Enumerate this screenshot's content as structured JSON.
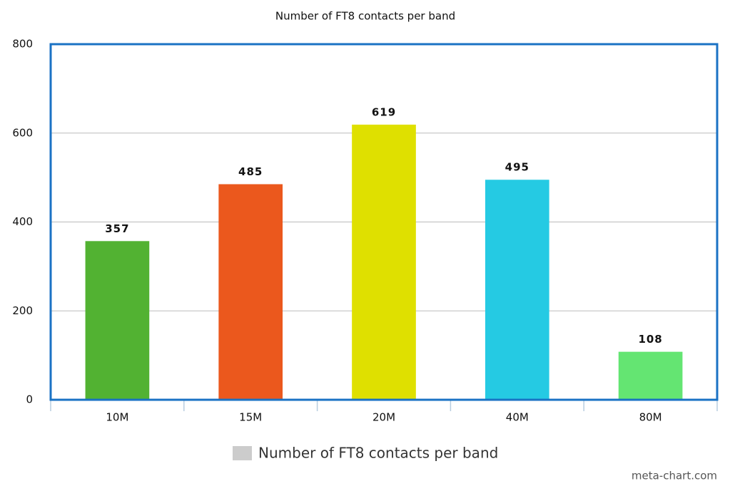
{
  "chart_data": {
    "type": "bar",
    "title": "Number of FT8 contacts per band",
    "categories": [
      "10M",
      "15M",
      "20M",
      "40M",
      "80M"
    ],
    "series": [
      {
        "name": "Number of FT8 contacts per band",
        "color": "#cccccc",
        "values": [
          357,
          485,
          619,
          495,
          108
        ]
      }
    ],
    "bar_colors": [
      "#52b232",
      "#eb581d",
      "#dfe000",
      "#25cae3",
      "#64e572"
    ],
    "ylim": [
      0,
      800
    ],
    "yticks": [
      0,
      200,
      400,
      600,
      800
    ],
    "grid": true,
    "legend": "bottom",
    "credit": "meta-chart.com"
  }
}
